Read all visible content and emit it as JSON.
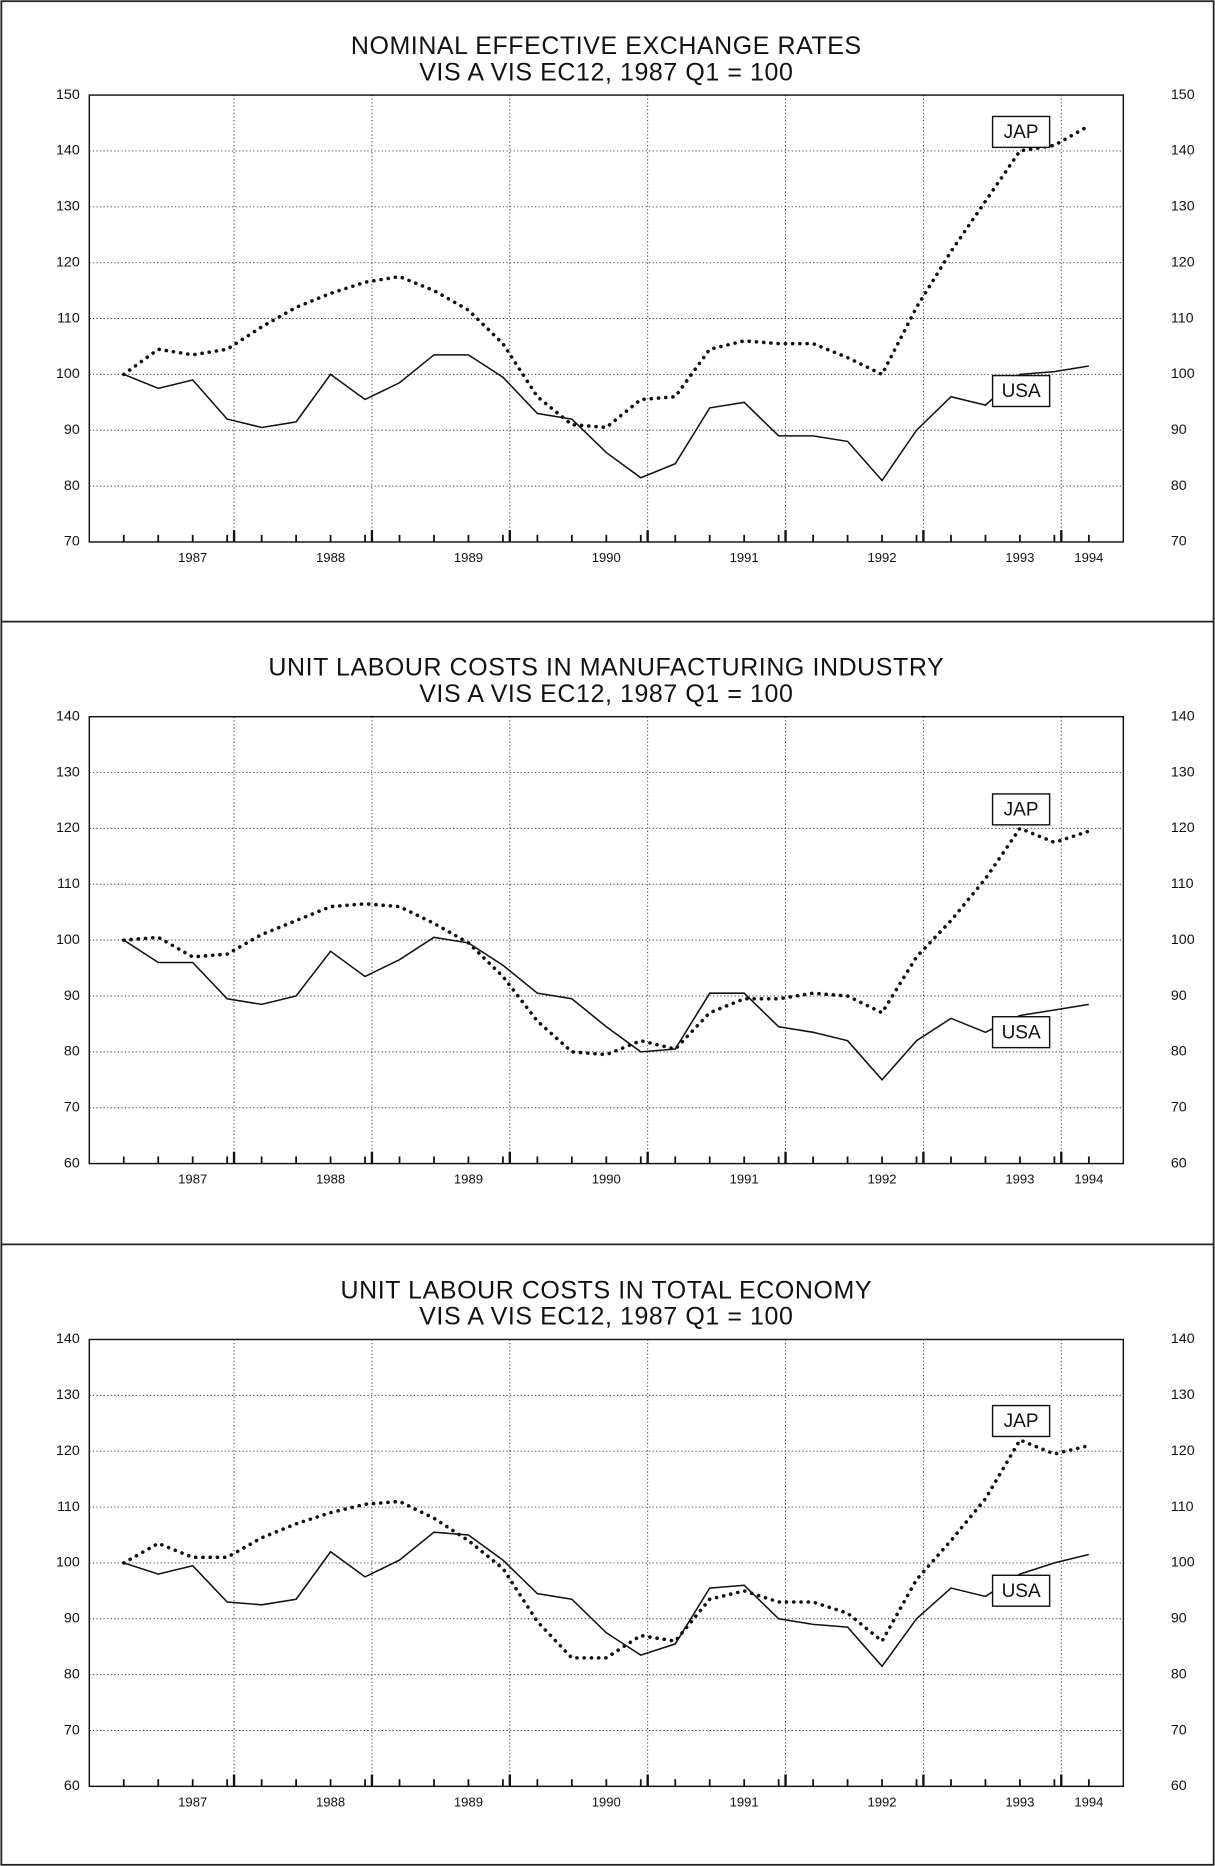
{
  "chart_data": [
    {
      "type": "line",
      "title": "NOMINAL EFFECTIVE EXCHANGE RATES",
      "subtitle": "VIS A VIS EC12, 1987 Q1 = 100",
      "x": [
        1987,
        1987.25,
        1987.5,
        1987.75,
        1988,
        1988.25,
        1988.5,
        1988.75,
        1989,
        1989.25,
        1989.5,
        1989.75,
        1990,
        1990.25,
        1990.5,
        1990.75,
        1991,
        1991.25,
        1991.5,
        1991.75,
        1992,
        1992.25,
        1992.5,
        1992.75,
        1993,
        1993.25,
        1993.5,
        1993.75,
        1994
      ],
      "series": [
        {
          "name": "USA",
          "color": "#111111",
          "style": "solid",
          "values": [
            100,
            97.5,
            99,
            92,
            90.5,
            91.5,
            100,
            95.5,
            98.5,
            103.5,
            103.5,
            99.5,
            93,
            92,
            86,
            81.5,
            84,
            94,
            95,
            89,
            89,
            88,
            81,
            90,
            96,
            94.5,
            100,
            100.5,
            101.5
          ]
        },
        {
          "name": "JAP",
          "color": "#111111",
          "style": "dotted",
          "values": [
            100,
            104.5,
            103.5,
            104.5,
            108.5,
            112,
            114.5,
            116.5,
            117.5,
            115,
            111.5,
            105.5,
            96,
            91,
            90.5,
            95.5,
            96,
            104.5,
            106,
            105.5,
            105.5,
            103,
            100,
            112,
            122,
            131,
            140,
            141,
            144.5
          ]
        }
      ],
      "xlim": [
        1986.75,
        1994.25
      ],
      "xticks": [
        {
          "value": 1987.5,
          "label": "1987"
        },
        {
          "value": 1988.5,
          "label": "1988"
        },
        {
          "value": 1989.5,
          "label": "1989"
        },
        {
          "value": 1990.5,
          "label": "1990"
        },
        {
          "value": 1991.5,
          "label": "1991"
        },
        {
          "value": 1992.5,
          "label": "1992"
        },
        {
          "value": 1993.5,
          "label": "1993"
        },
        {
          "value": 1994,
          "label": "1994"
        }
      ],
      "xgrid": [
        1987.8,
        1988.8,
        1989.8,
        1990.8,
        1991.8,
        1992.8,
        1993.8
      ],
      "ylim": [
        70,
        150
      ],
      "yticks": [
        70,
        80,
        90,
        100,
        110,
        120,
        130,
        140,
        150
      ],
      "grid": true
    },
    {
      "type": "line",
      "title": "UNIT LABOUR COSTS IN MANUFACTURING INDUSTRY",
      "subtitle": "VIS A VIS EC12, 1987 Q1 = 100",
      "x": [
        1987,
        1987.25,
        1987.5,
        1987.75,
        1988,
        1988.25,
        1988.5,
        1988.75,
        1989,
        1989.25,
        1989.5,
        1989.75,
        1990,
        1990.25,
        1990.5,
        1990.75,
        1991,
        1991.25,
        1991.5,
        1991.75,
        1992,
        1992.25,
        1992.5,
        1992.75,
        1993,
        1993.25,
        1993.5,
        1993.75,
        1994
      ],
      "series": [
        {
          "name": "USA",
          "color": "#111111",
          "style": "solid",
          "values": [
            100,
            96,
            96,
            89.5,
            88.5,
            90,
            98,
            93.5,
            96.5,
            100.5,
            99.5,
            95.5,
            90.5,
            89.5,
            84.5,
            80,
            80.5,
            90.5,
            90.5,
            84.5,
            83.5,
            82,
            75,
            82,
            86,
            83.5,
            86.5,
            87.5,
            88.5
          ]
        },
        {
          "name": "JAP",
          "color": "#111111",
          "style": "dotted",
          "values": [
            100,
            100.5,
            97,
            97.5,
            101,
            103.5,
            106,
            106.5,
            106,
            103,
            99.5,
            93.5,
            85.5,
            80,
            79.5,
            82,
            80.5,
            87,
            89.5,
            89.5,
            90.5,
            90,
            87,
            97,
            103.5,
            111,
            120,
            117.5,
            119.5
          ]
        }
      ],
      "xlim": [
        1986.75,
        1994.25
      ],
      "xticks": [
        {
          "value": 1987.5,
          "label": "1987"
        },
        {
          "value": 1988.5,
          "label": "1988"
        },
        {
          "value": 1989.5,
          "label": "1989"
        },
        {
          "value": 1990.5,
          "label": "1990"
        },
        {
          "value": 1991.5,
          "label": "1991"
        },
        {
          "value": 1992.5,
          "label": "1992"
        },
        {
          "value": 1993.5,
          "label": "1993"
        },
        {
          "value": 1994,
          "label": "1994"
        }
      ],
      "xgrid": [
        1987.8,
        1988.8,
        1989.8,
        1990.8,
        1991.8,
        1992.8,
        1993.8
      ],
      "ylim": [
        60,
        140
      ],
      "yticks": [
        60,
        70,
        80,
        90,
        100,
        110,
        120,
        130,
        140
      ],
      "grid": true
    },
    {
      "type": "line",
      "title": "UNIT LABOUR COSTS IN TOTAL ECONOMY",
      "subtitle": "VIS A VIS EC12, 1987 Q1 = 100",
      "x": [
        1987,
        1987.25,
        1987.5,
        1987.75,
        1988,
        1988.25,
        1988.5,
        1988.75,
        1989,
        1989.25,
        1989.5,
        1989.75,
        1990,
        1990.25,
        1990.5,
        1990.75,
        1991,
        1991.25,
        1991.5,
        1991.75,
        1992,
        1992.25,
        1992.5,
        1992.75,
        1993,
        1993.25,
        1993.5,
        1993.75,
        1994
      ],
      "series": [
        {
          "name": "USA",
          "color": "#111111",
          "style": "solid",
          "values": [
            100,
            98,
            99.5,
            93,
            92.5,
            93.5,
            102,
            97.5,
            100.5,
            105.5,
            105,
            100.5,
            94.5,
            93.5,
            87.5,
            83.5,
            85.5,
            95.5,
            96,
            90,
            89,
            88.5,
            81.5,
            90,
            95.5,
            94,
            98,
            100,
            101.5
          ]
        },
        {
          "name": "JAP",
          "color": "#111111",
          "style": "dotted",
          "values": [
            100,
            103.5,
            101,
            101,
            104.5,
            107,
            109,
            110.5,
            111,
            108,
            104,
            99,
            89.5,
            83,
            83,
            87,
            86,
            93.5,
            95,
            93,
            93,
            91,
            86,
            97,
            104,
            111.5,
            122,
            119.5,
            121
          ]
        }
      ],
      "xlim": [
        1986.75,
        1994.25
      ],
      "xticks": [
        {
          "value": 1987.5,
          "label": "1987"
        },
        {
          "value": 1988.5,
          "label": "1988"
        },
        {
          "value": 1989.5,
          "label": "1989"
        },
        {
          "value": 1990.5,
          "label": "1990"
        },
        {
          "value": 1991.5,
          "label": "1991"
        },
        {
          "value": 1992.5,
          "label": "1992"
        },
        {
          "value": 1993.5,
          "label": "1993"
        },
        {
          "value": 1994,
          "label": "1994"
        }
      ],
      "xgrid": [
        1987.8,
        1988.8,
        1989.8,
        1990.8,
        1991.8,
        1992.8,
        1993.8
      ],
      "ylim": [
        60,
        140
      ],
      "yticks": [
        60,
        70,
        80,
        90,
        100,
        110,
        120,
        130,
        140
      ],
      "grid": true
    }
  ]
}
